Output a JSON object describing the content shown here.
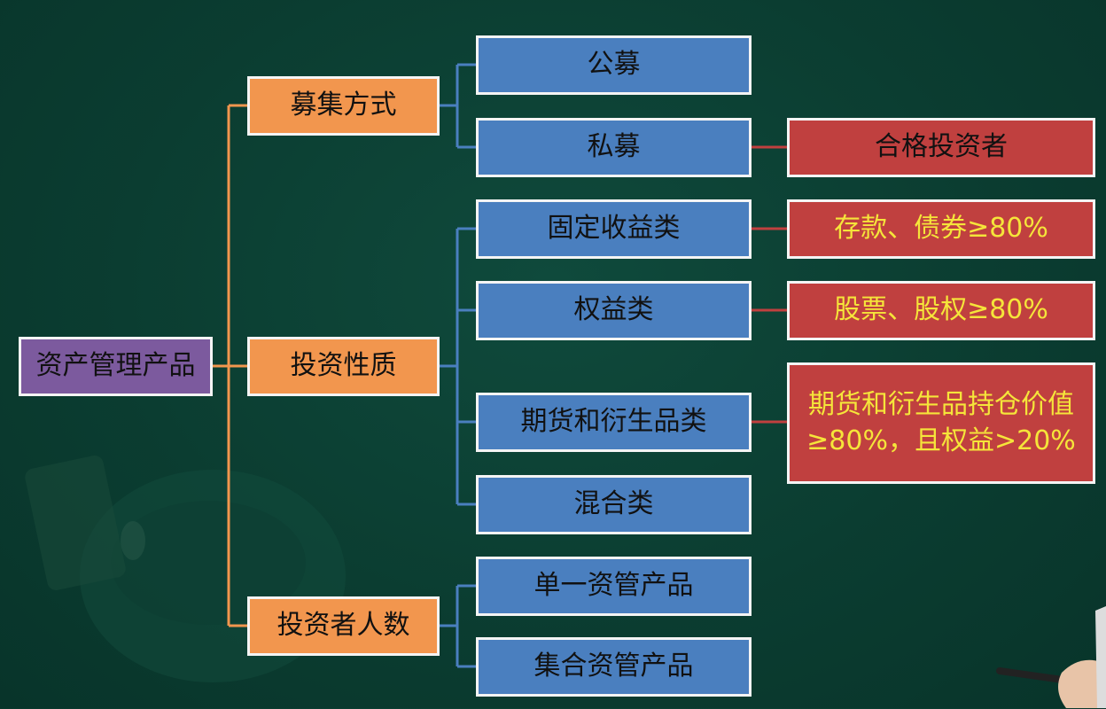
{
  "root": {
    "label": "资产管理产品"
  },
  "categories": [
    {
      "label": "募集方式"
    },
    {
      "label": "投资性质"
    },
    {
      "label": "投资者人数"
    }
  ],
  "leaves": [
    {
      "label": "公募"
    },
    {
      "label": "私募"
    },
    {
      "label": "固定收益类"
    },
    {
      "label": "权益类"
    },
    {
      "label": "期货和衍生品类"
    },
    {
      "label": "混合类"
    },
    {
      "label": "单一资管产品"
    },
    {
      "label": "集合资管产品"
    }
  ],
  "notes": [
    {
      "label": "合格投资者"
    },
    {
      "label": "存款、债券≥80%"
    },
    {
      "label": "股票、股权≥80%"
    },
    {
      "line1": "期货和衍生品持仓价值",
      "line2": "≥80%，且权益>20%"
    }
  ],
  "colors": {
    "background": "#0b3d31",
    "root": "#7c5a9e",
    "category": "#f2964e",
    "leaf": "#4a7fbf",
    "note": "#c0403f",
    "note_text": "#f5e53a",
    "connector_root": "#f2964e",
    "connector_leaf": "#4a7fbf",
    "connector_note": "#c0403f"
  }
}
